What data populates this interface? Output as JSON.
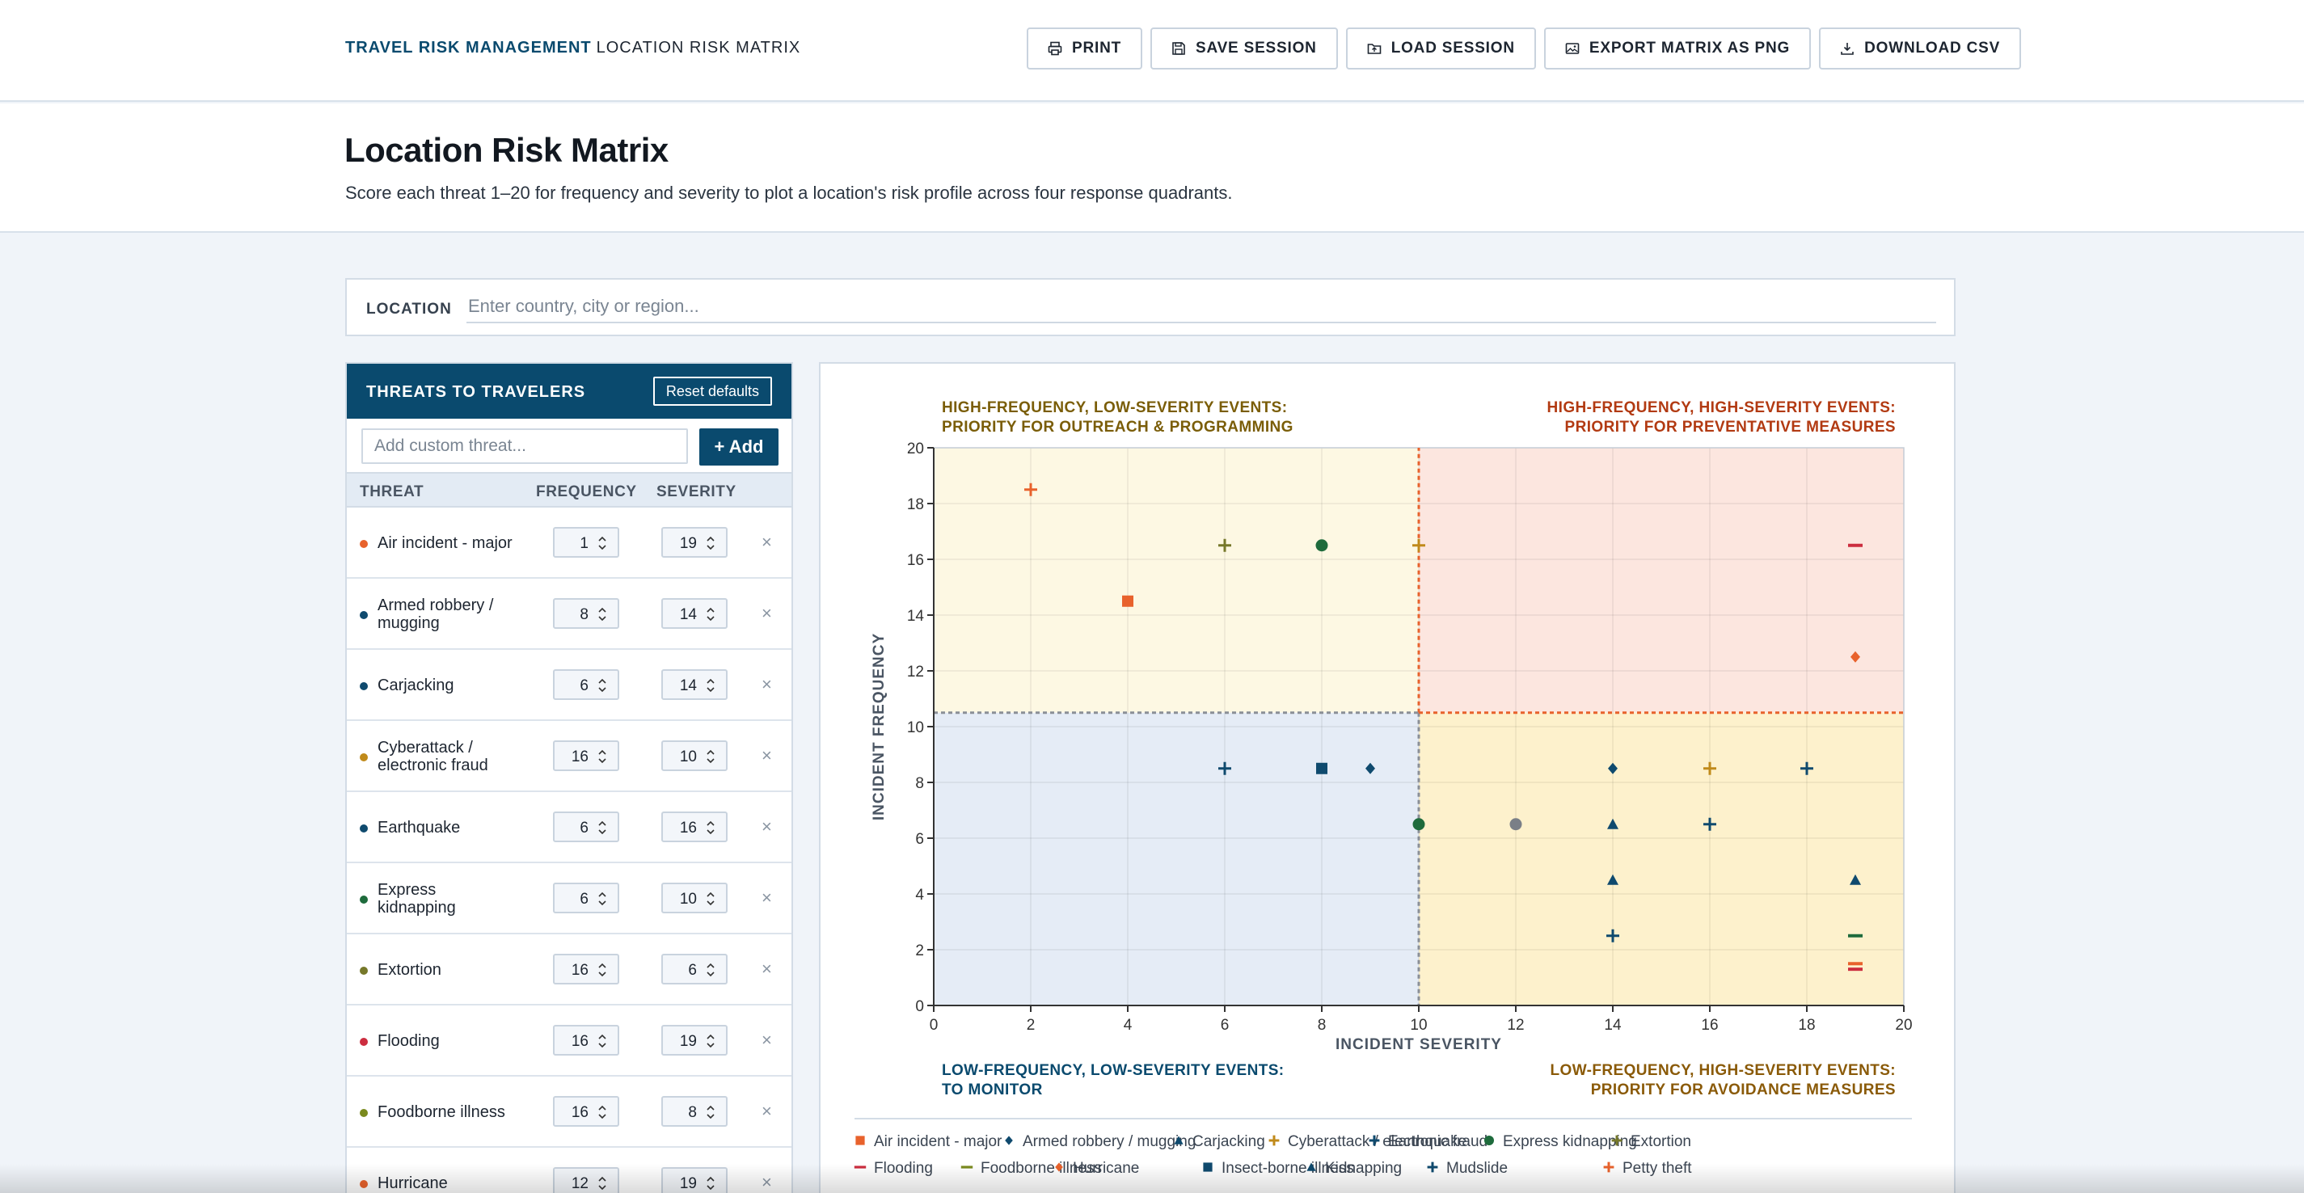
{
  "header": {
    "brand_primary": "TRAVEL RISK MANAGEMENT",
    "brand_secondary": "LOCATION RISK MATRIX",
    "buttons": [
      {
        "label": "PRINT",
        "icon": "printer-icon"
      },
      {
        "label": "SAVE SESSION",
        "icon": "save-icon"
      },
      {
        "label": "LOAD SESSION",
        "icon": "folder-icon"
      },
      {
        "label": "EXPORT MATRIX AS PNG",
        "icon": "image-icon"
      },
      {
        "label": "DOWNLOAD CSV",
        "icon": "download-icon"
      }
    ]
  },
  "hero": {
    "title": "Location Risk Matrix",
    "subtitle": "Score each threat 1–20 for frequency and severity to plot a location's risk profile across four response quadrants."
  },
  "location": {
    "label": "LOCATION",
    "placeholder": "Enter country, city or region...",
    "value": ""
  },
  "threats_panel": {
    "title": "THREATS TO TRAVELERS",
    "reset_label": "Reset defaults",
    "add_placeholder": "Add custom threat...",
    "add_label": "+ Add",
    "col_threat": "THREAT",
    "col_frequency": "FREQUENCY",
    "col_severity": "SEVERITY",
    "remove_glyph": "×",
    "rows": [
      {
        "name": "Air incident - major",
        "frequency": "1",
        "severity": "19",
        "color": "#e8622c"
      },
      {
        "name": "Armed robbery / mugging",
        "frequency": "8",
        "severity": "14",
        "color": "#0f4a6e"
      },
      {
        "name": "Carjacking",
        "frequency": "6",
        "severity": "14",
        "color": "#0f4a6e"
      },
      {
        "name": "Cyberattack / electronic fraud",
        "frequency": "16",
        "severity": "10",
        "color": "#c08a1a"
      },
      {
        "name": "Earthquake",
        "frequency": "6",
        "severity": "16",
        "color": "#0f4a6e"
      },
      {
        "name": "Express kidnapping",
        "frequency": "6",
        "severity": "10",
        "color": "#1e6b3c"
      },
      {
        "name": "Extortion",
        "frequency": "16",
        "severity": "6",
        "color": "#76782a"
      },
      {
        "name": "Flooding",
        "frequency": "16",
        "severity": "19",
        "color": "#cc2d3f"
      },
      {
        "name": "Foodborne illness",
        "frequency": "16",
        "severity": "8",
        "color": "#7a8a1e"
      },
      {
        "name": "Hurricane",
        "frequency": "12",
        "severity": "19",
        "color": "#e8622c"
      }
    ]
  },
  "chart_data": {
    "type": "scatter",
    "quadrant_labels": {
      "top_left": [
        "HIGH-FREQUENCY, LOW-SEVERITY EVENTS:",
        "PRIORITY FOR OUTREACH & PROGRAMMING"
      ],
      "top_right": [
        "HIGH-FREQUENCY, HIGH-SEVERITY EVENTS:",
        "PRIORITY FOR PREVENTATIVE MEASURES"
      ],
      "bottom_left": [
        "LOW-FREQUENCY, LOW-SEVERITY EVENTS:",
        "TO MONITOR"
      ],
      "bottom_right": [
        "LOW-FREQUENCY, HIGH-SEVERITY EVENTS:",
        "PRIORITY FOR AVOIDANCE MEASURES"
      ]
    },
    "quadrant_colors": {
      "top_left": "#fdf8e3",
      "top_right": "#fce6df",
      "bottom_left": "#e5ecf6",
      "bottom_right": "#fdf1cc"
    },
    "xlabel": "INCIDENT SEVERITY",
    "ylabel": "INCIDENT FREQUENCY",
    "xlim": [
      0,
      20
    ],
    "ylim": [
      0,
      20
    ],
    "x_ticks": [
      "0",
      "2",
      "4",
      "6",
      "8",
      "10",
      "12",
      "14",
      "16",
      "18",
      "20"
    ],
    "y_ticks": [
      "0",
      "2",
      "4",
      "6",
      "8",
      "10",
      "12",
      "14",
      "16",
      "18",
      "20"
    ],
    "grid": true,
    "x_divider": 10,
    "y_divider": 10.5,
    "points": [
      {
        "x": 2,
        "y": 18.5,
        "shape": "plus",
        "color": "#e8622c"
      },
      {
        "x": 4,
        "y": 14.5,
        "shape": "square",
        "color": "#e8622c"
      },
      {
        "x": 6,
        "y": 16.5,
        "shape": "plus",
        "color": "#76782a"
      },
      {
        "x": 8,
        "y": 16.5,
        "shape": "circle",
        "color": "#1e6b3c"
      },
      {
        "x": 10,
        "y": 16.5,
        "shape": "plus",
        "color": "#c08a1a"
      },
      {
        "x": 19,
        "y": 16.5,
        "shape": "dash",
        "color": "#cc2d3f"
      },
      {
        "x": 19,
        "y": 12.5,
        "shape": "diamond",
        "color": "#e8622c"
      },
      {
        "x": 6,
        "y": 8.5,
        "shape": "plus",
        "color": "#0f4a6e"
      },
      {
        "x": 8,
        "y": 8.5,
        "shape": "square",
        "color": "#0f4a6e"
      },
      {
        "x": 9,
        "y": 8.5,
        "shape": "diamond",
        "color": "#0f4a6e"
      },
      {
        "x": 10,
        "y": 6.5,
        "shape": "circle",
        "color": "#1e6b3c"
      },
      {
        "x": 12,
        "y": 6.5,
        "shape": "circle",
        "color": "#7a7f87"
      },
      {
        "x": 14,
        "y": 8.5,
        "shape": "diamond",
        "color": "#0f4a6e"
      },
      {
        "x": 16,
        "y": 8.5,
        "shape": "plus",
        "color": "#c08a1a"
      },
      {
        "x": 18,
        "y": 8.5,
        "shape": "plus",
        "color": "#0f4a6e"
      },
      {
        "x": 14,
        "y": 6.5,
        "shape": "triangle",
        "color": "#0f4a6e"
      },
      {
        "x": 16,
        "y": 6.5,
        "shape": "plus",
        "color": "#0f4a6e"
      },
      {
        "x": 14,
        "y": 4.5,
        "shape": "triangle",
        "color": "#0f4a6e"
      },
      {
        "x": 19,
        "y": 4.5,
        "shape": "triangle",
        "color": "#0f4a6e"
      },
      {
        "x": 14,
        "y": 2.5,
        "shape": "plus",
        "color": "#0f4a6e"
      },
      {
        "x": 19,
        "y": 2.5,
        "shape": "dash",
        "color": "#1e6b3c"
      },
      {
        "x": 19,
        "y": 1.5,
        "shape": "dash",
        "color": "#e8622c"
      },
      {
        "x": 19,
        "y": 1.3,
        "shape": "dash",
        "color": "#cc2d3f"
      }
    ],
    "legend": [
      {
        "label": "Air incident - major",
        "shape": "square",
        "color": "#e8622c"
      },
      {
        "label": "Armed robbery / mugging",
        "shape": "diamond",
        "color": "#0f4a6e"
      },
      {
        "label": "Carjacking",
        "shape": "triangle",
        "color": "#0f4a6e"
      },
      {
        "label": "Cyberattack / electronic fraud",
        "shape": "plus",
        "color": "#c08a1a"
      },
      {
        "label": "Earthquake",
        "shape": "plus",
        "color": "#0f4a6e"
      },
      {
        "label": "Express kidnapping",
        "shape": "circle",
        "color": "#1e6b3c"
      },
      {
        "label": "Extortion",
        "shape": "plus",
        "color": "#76782a"
      },
      {
        "label": "Flooding",
        "shape": "dash",
        "color": "#cc2d3f"
      },
      {
        "label": "Foodborne illness",
        "shape": "dash",
        "color": "#7a8a1e"
      },
      {
        "label": "Hurricane",
        "shape": "diamond",
        "color": "#e8622c"
      },
      {
        "label": "Insect-borne illness",
        "shape": "square",
        "color": "#0f4a6e"
      },
      {
        "label": "Kidnapping",
        "shape": "triangle",
        "color": "#0f4a6e"
      },
      {
        "label": "Mudslide",
        "shape": "plus",
        "color": "#0f4a6e"
      },
      {
        "label": "Petty theft",
        "shape": "plus",
        "color": "#e8622c"
      }
    ]
  }
}
